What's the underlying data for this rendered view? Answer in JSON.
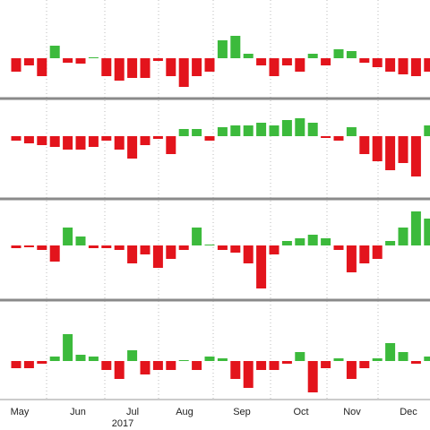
{
  "chart_data": [
    {
      "type": "bar",
      "ylim": [
        -43,
        65
      ],
      "positive_color": "#3cba3c",
      "negative_color": "#e3141c",
      "values": [
        -15,
        -8,
        -20,
        14,
        -5,
        -6,
        1,
        -20,
        -25,
        -22,
        -22,
        -3,
        -20,
        -32,
        -20,
        -15,
        20,
        25,
        5,
        -8,
        -20,
        -8,
        -15,
        5,
        -8,
        10,
        8,
        -5,
        -10,
        -15,
        -18,
        -20,
        -15
      ]
    },
    {
      "type": "bar",
      "ylim": [
        -68,
        39
      ],
      "positive_color": "#3cba3c",
      "negative_color": "#e3141c",
      "values": [
        -5,
        -8,
        -10,
        -12,
        -15,
        -15,
        -12,
        -5,
        -15,
        -25,
        -10,
        -3,
        -20,
        8,
        8,
        -5,
        10,
        12,
        12,
        15,
        12,
        18,
        20,
        15,
        -2,
        -5,
        10,
        -20,
        -28,
        -38,
        -30,
        -45,
        12
      ]
    },
    {
      "type": "bar",
      "ylim": [
        -59,
        48
      ],
      "positive_color": "#3cba3c",
      "negative_color": "#e3141c",
      "values": [
        -3,
        -2,
        -5,
        -18,
        20,
        10,
        -3,
        -3,
        -5,
        -20,
        -10,
        -25,
        -15,
        -5,
        20,
        1,
        -5,
        -8,
        -20,
        -48,
        -10,
        5,
        8,
        12,
        8,
        -5,
        -30,
        -20,
        -15,
        5,
        20,
        38,
        30
      ]
    },
    {
      "type": "bar",
      "ylim": [
        -42,
        65
      ],
      "positive_color": "#3cba3c",
      "negative_color": "#e3141c",
      "values": [
        -8,
        -8,
        -3,
        5,
        30,
        7,
        5,
        -10,
        -20,
        12,
        -15,
        -10,
        -10,
        1,
        -10,
        5,
        3,
        -20,
        -30,
        -10,
        -10,
        -3,
        10,
        -35,
        -8,
        3,
        -20,
        -8,
        3,
        20,
        10,
        -3,
        5
      ]
    }
  ],
  "x_axis": {
    "labels": [
      "May",
      "Jun",
      "Jul",
      "Aug",
      "Sep",
      "Oct",
      "Nov",
      "Dec"
    ],
    "year": "2017"
  }
}
